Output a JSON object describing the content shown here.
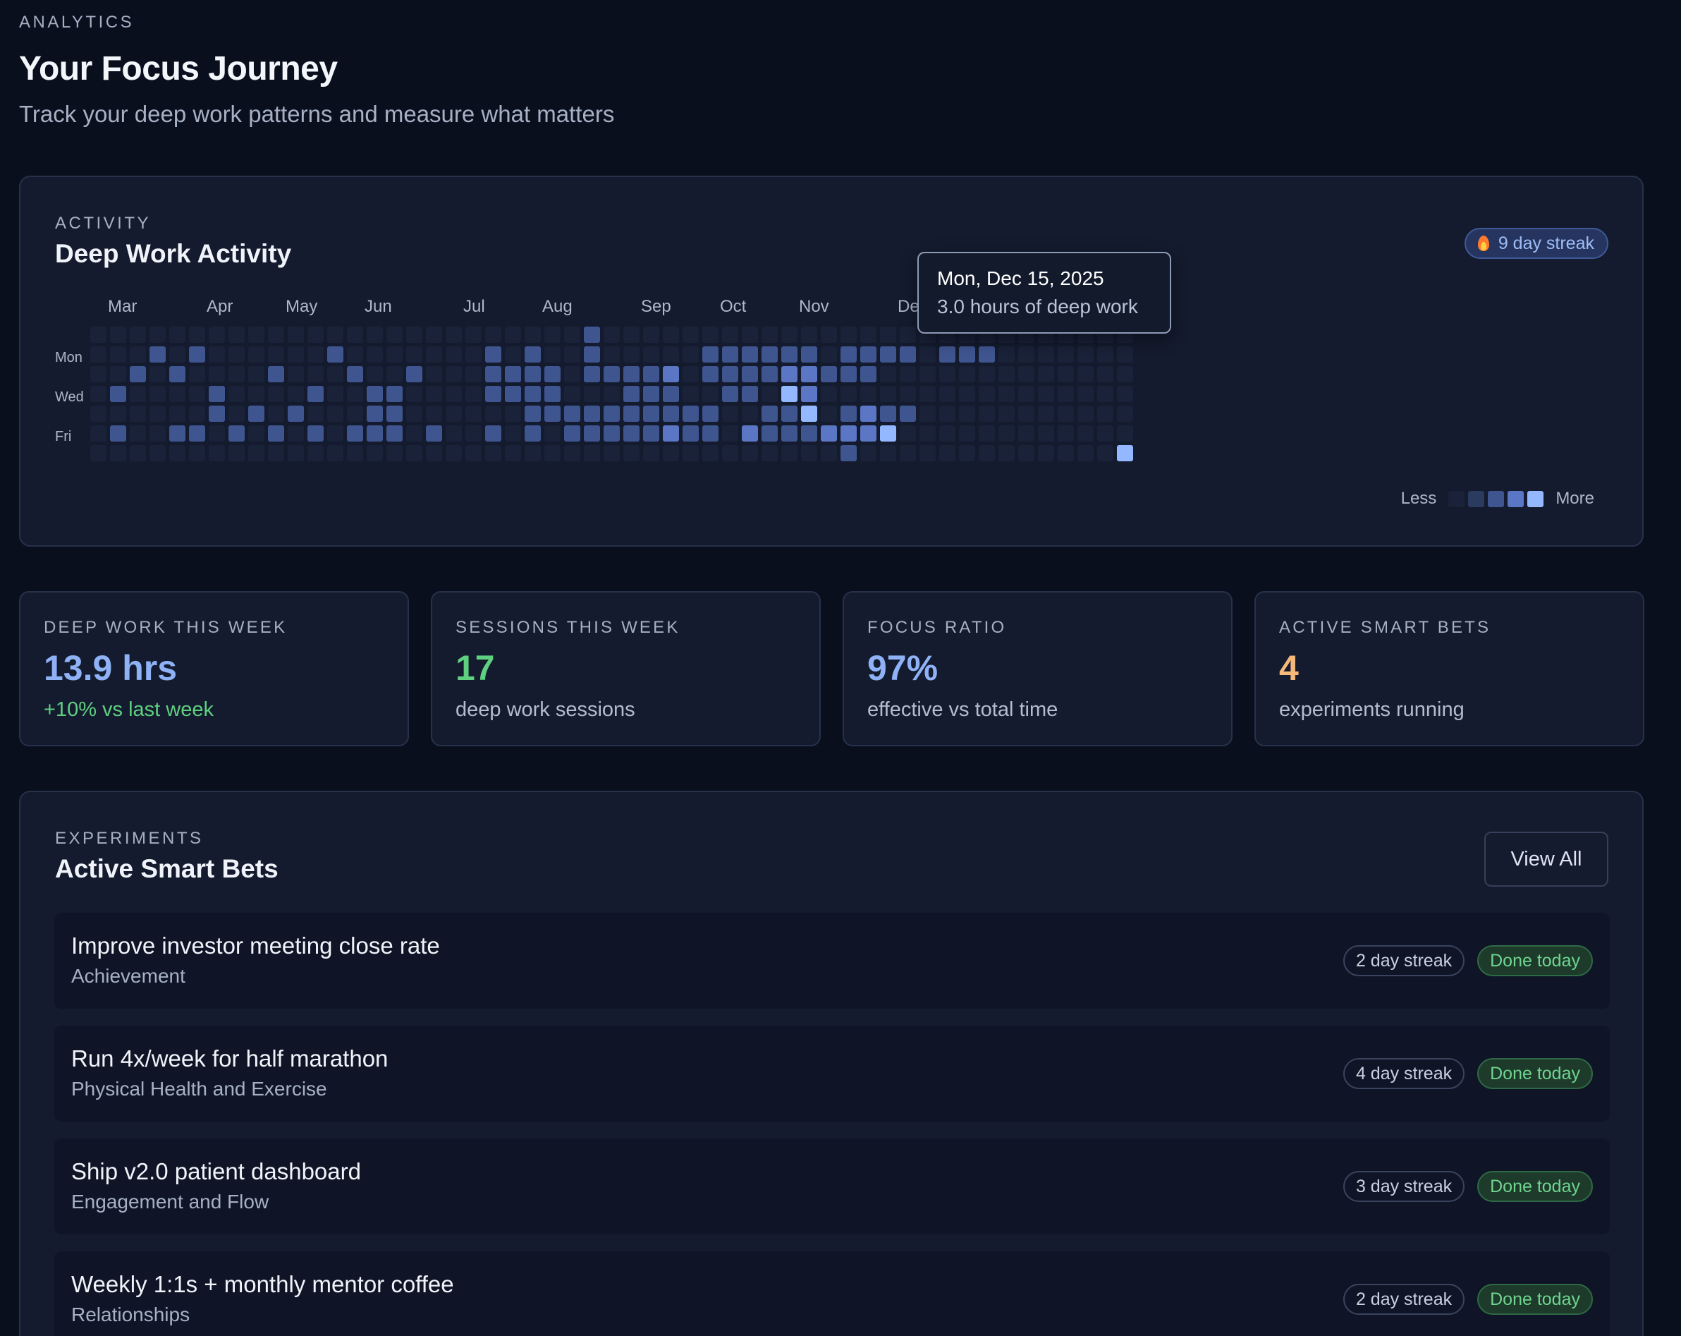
{
  "header": {
    "eyebrow": "ANALYTICS",
    "title": "Your Focus Journey",
    "subtitle": "Track your deep work patterns and measure what matters"
  },
  "activity": {
    "eyebrow": "ACTIVITY",
    "title": "Deep Work Activity",
    "streak_badge": "9 day streak",
    "months": [
      "Mar",
      "Apr",
      "May",
      "Jun",
      "Jul",
      "Aug",
      "Sep",
      "Oct",
      "Nov",
      "De"
    ],
    "day_labels": [
      "Mon",
      "Wed",
      "Fri"
    ],
    "legend": {
      "less": "Less",
      "more": "More"
    },
    "tooltip": {
      "date": "Mon, Dec 15, 2025",
      "hours": "3.0 hours of deep work"
    },
    "level_colors": [
      "#192238",
      "#2b3a5f",
      "#3f5590",
      "#5b76c4",
      "#94b8ff"
    ],
    "grid": [
      "00000000000000000000000002000000000000000000000000000",
      "00020200000020000000202002000002222220222202220000000",
      "00202000020002002000222202222302222332220000000000000",
      "02000020000200220000222200022200220430000000000000000",
      "00000020202000220000002222222222002240232200000000000",
      "02002202020202220200202022222322032223334000000000000",
      "00000000000000000000000000000000000000200000000000004"
    ]
  },
  "stats": [
    {
      "label": "DEEP WORK THIS WEEK",
      "value": "13.9 hrs",
      "note": "+10% vs last week",
      "value_color": "#8fb2f6",
      "note_color": "#5fcf80"
    },
    {
      "label": "SESSIONS THIS WEEK",
      "value": "17",
      "note": "deep work sessions",
      "value_color": "#5fcf80",
      "note_color": "#b3bdcf"
    },
    {
      "label": "FOCUS RATIO",
      "value": "97%",
      "note": "effective vs total time",
      "value_color": "#8fb2f6",
      "note_color": "#b3bdcf"
    },
    {
      "label": "ACTIVE SMART BETS",
      "value": "4",
      "note": "experiments running",
      "value_color": "#f4b879",
      "note_color": "#b3bdcf"
    }
  ],
  "experiments": {
    "eyebrow": "EXPERIMENTS",
    "title": "Active Smart Bets",
    "view_all": "View All",
    "items": [
      {
        "name": "Improve investor meeting close rate",
        "category": "Achievement",
        "streak": "2 day streak",
        "status": "Done today"
      },
      {
        "name": "Run 4x/week for half marathon",
        "category": "Physical Health and Exercise",
        "streak": "4 day streak",
        "status": "Done today"
      },
      {
        "name": "Ship v2.0 patient dashboard",
        "category": "Engagement and Flow",
        "streak": "3 day streak",
        "status": "Done today"
      },
      {
        "name": "Weekly 1:1s + monthly mentor coffee",
        "category": "Relationships",
        "streak": "2 day streak",
        "status": "Done today"
      }
    ]
  }
}
